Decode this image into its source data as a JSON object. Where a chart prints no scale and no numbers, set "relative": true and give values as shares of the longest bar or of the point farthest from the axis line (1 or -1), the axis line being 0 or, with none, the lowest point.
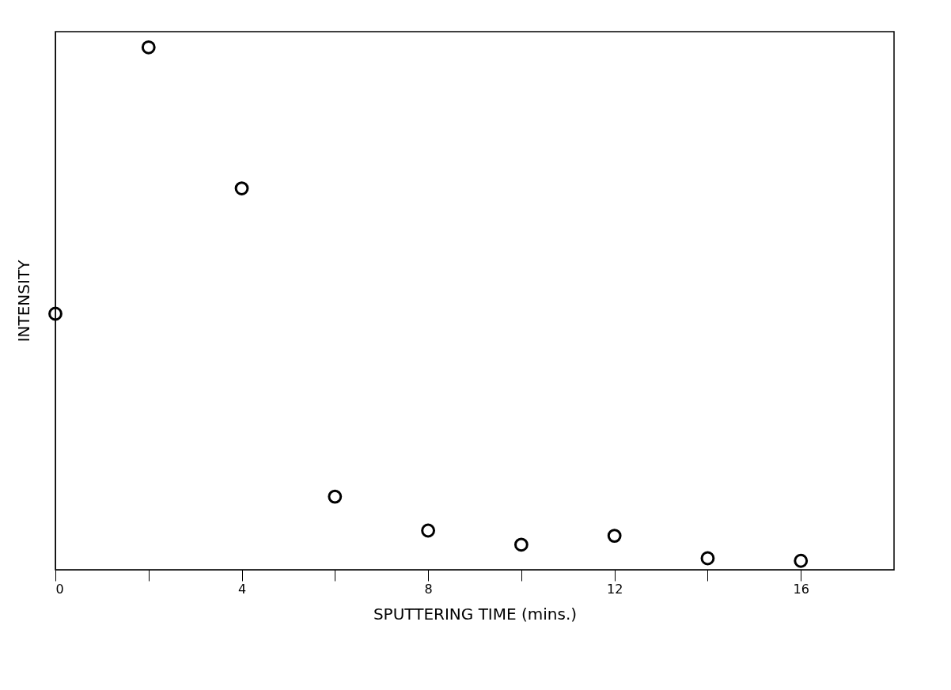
{
  "chart_data": {
    "type": "scatter",
    "xlabel": "SPUTTERING TIME (mins.)",
    "ylabel": "INTENSITY",
    "relative": true,
    "x": [
      0,
      2,
      4,
      6,
      8,
      10,
      12,
      14,
      16
    ],
    "series": [
      {
        "color": "#000000",
        "values": [
          0.49,
          1,
          0.73,
          0.14,
          0.075,
          0.048,
          0.065,
          0.022,
          0.017
        ]
      }
    ],
    "xlim": [
      0,
      18
    ],
    "xticks": [
      0,
      {
        "value": 2,
        "label": null
      },
      4,
      {
        "value": 6,
        "label": null
      },
      8,
      {
        "value": 10,
        "label": null
      },
      12,
      {
        "value": 14,
        "label": null
      },
      16
    ],
    "marker": "circle",
    "grid": false,
    "legend": false
  }
}
